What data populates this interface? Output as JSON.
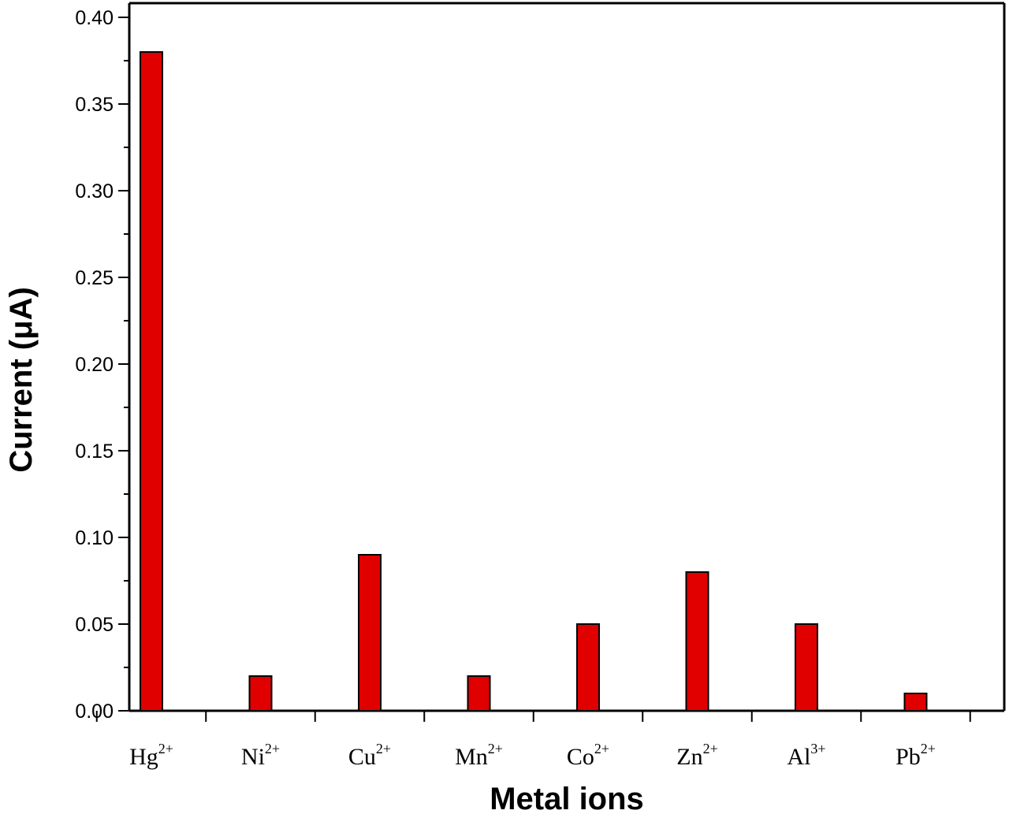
{
  "chart_data": {
    "type": "bar",
    "title": "",
    "xlabel": "Metal ions",
    "ylabel": "Current (μA)",
    "ylim": [
      0,
      0.4
    ],
    "yticks": [
      "0.00",
      "0.05",
      "0.10",
      "0.15",
      "0.20",
      "0.25",
      "0.30",
      "0.35",
      "0.40"
    ],
    "categories": [
      {
        "base": "Hg",
        "sup": "2+"
      },
      {
        "base": "Ni",
        "sup": "2+"
      },
      {
        "base": "Cu",
        "sup": "2+"
      },
      {
        "base": "Mn",
        "sup": "2+"
      },
      {
        "base": "Co",
        "sup": "2+"
      },
      {
        "base": "Zn",
        "sup": "2+"
      },
      {
        "base": "Al",
        "sup": "3+"
      },
      {
        "base": "Pb",
        "sup": "2+"
      }
    ],
    "values": [
      0.38,
      0.02,
      0.09,
      0.02,
      0.05,
      0.08,
      0.05,
      0.01
    ],
    "bar_color": "#e00000",
    "bar_edge_color": "#000000",
    "grid": false,
    "legend": false
  }
}
